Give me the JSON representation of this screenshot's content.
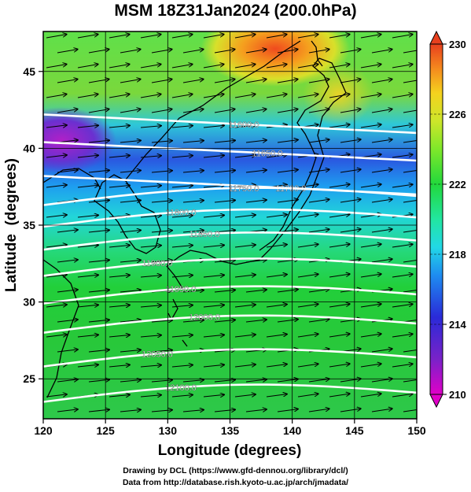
{
  "title": "MSM 18Z31Jan2024 (200.0hPa)",
  "x_axis": {
    "label": "Longitude (degrees)",
    "ticks": [
      120,
      125,
      130,
      135,
      140,
      145,
      150
    ],
    "range": [
      120,
      150
    ]
  },
  "y_axis": {
    "label": "Latitude  (degrees)",
    "ticks": [
      25,
      30,
      35,
      40,
      45
    ],
    "range": [
      22.4,
      47.6
    ]
  },
  "colorbar": {
    "ticks": [
      210,
      214,
      218,
      222,
      226,
      230
    ],
    "range": [
      210,
      230
    ],
    "colors": [
      "#e000c8",
      "#7a22c8",
      "#2a2ad8",
      "#1e8cf0",
      "#22d8e6",
      "#22e6a0",
      "#22d83c",
      "#7ee82a",
      "#cde62a",
      "#f5d21e",
      "#f58a1e",
      "#e8401e"
    ]
  },
  "contours": [
    {
      "label": "11600.0",
      "lat_at_120": 42.2
    },
    {
      "label": "11650.0",
      "lat_at_120": 40.4
    },
    {
      "label": "11700.0",
      "lat_at_120": 38.2
    },
    {
      "label": "11750.0",
      "lat_at_120": 36.3
    },
    {
      "label": "11800.0",
      "lat_at_120": 34.9
    },
    {
      "label": "11850.0",
      "lat_at_120": 33.4
    },
    {
      "label": "11900.0",
      "lat_at_120": 31.7
    },
    {
      "label": "11950.0",
      "lat_at_120": 29.9
    },
    {
      "label": "12000.0",
      "lat_at_120": 28.0
    },
    {
      "label": "12050.0",
      "lat_at_120": 25.8
    },
    {
      "label": "12100.0",
      "lat_at_120": 23.5
    }
  ],
  "credits": {
    "line1": "Drawing by DCL (https://www.gfd-dennou.org/library/dcl/)",
    "line2": "Data from http://database.rish.kyoto-u.ac.jp/arch/jmadata/"
  }
}
